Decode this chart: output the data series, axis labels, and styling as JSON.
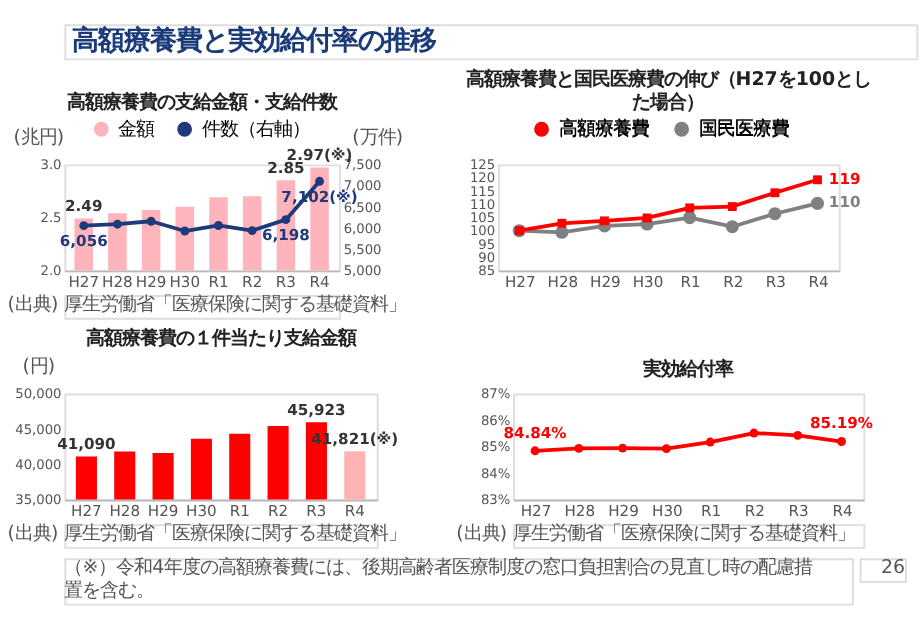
{
  "chart_data": [
    {
      "type": "other",
      "title": "高額療養費と実効給付率の推移",
      "annotations": [
        "（※）令和4年度の高額療養費には、後期高齢者医療制度の窓口負担割合の見直し時の配慮措置を含む。",
        "26"
      ]
    },
    {
      "type": "bar",
      "title": "高額療養費の支給金額・支給件数",
      "ylabel": "(兆円)",
      "y2label": "(万件)",
      "categories": [
        "H27",
        "H28",
        "H29",
        "H30",
        "R1",
        "R2",
        "R3",
        "R4"
      ],
      "ylim": [
        2.0,
        3.0
      ],
      "yticks": [
        {
          "value": 2.0,
          "label": "2.0"
        },
        {
          "value": 2.5,
          "label": "2.5"
        },
        {
          "value": 3.0,
          "label": "3.0"
        }
      ],
      "y2lim": [
        5000,
        7500
      ],
      "y2ticks": [
        {
          "value": 5000,
          "label": "5,000"
        },
        {
          "value": 5500,
          "label": "5,500"
        },
        {
          "value": 6000,
          "label": "6,000"
        },
        {
          "value": 6500,
          "label": "6,500"
        },
        {
          "value": 7000,
          "label": "7,000"
        },
        {
          "value": 7500,
          "label": "7,500"
        }
      ],
      "legend": "top",
      "grid": false,
      "series": [
        {
          "name": "金額",
          "type": "bar",
          "color": "#ffb3ba",
          "values": [
            2.49,
            2.54,
            2.57,
            2.6,
            2.69,
            2.7,
            2.85,
            2.97
          ],
          "value_labels": [
            "2.49",
            null,
            null,
            null,
            null,
            null,
            "2.85",
            "2.97(※)"
          ]
        },
        {
          "name": "件数（右軸）",
          "type": "line",
          "axis": "y2",
          "color": "#1f3a7a",
          "marker": "circle",
          "values": [
            6056,
            6090,
            6160,
            5930,
            6060,
            5940,
            6198,
            7102
          ],
          "value_labels": [
            "6,056",
            null,
            null,
            null,
            null,
            null,
            "6,198",
            "7,102(※)"
          ]
        }
      ],
      "annotations": [
        "(出典) 厚生労働省「医療保険に関する基礎資料」"
      ]
    },
    {
      "type": "line",
      "title": "高額療養費と国民医療費の伸び（H27を100とした場合）",
      "categories": [
        "H27",
        "H28",
        "H29",
        "H30",
        "R1",
        "R2",
        "R3",
        "R4"
      ],
      "ylim": [
        85,
        125
      ],
      "yticks": [
        85,
        90,
        95,
        100,
        105,
        110,
        115,
        120,
        125
      ],
      "legend": "top",
      "grid": false,
      "series": [
        {
          "name": "高額療養費",
          "color": "#ff0000",
          "marker": "square",
          "values": [
            100,
            102.8,
            103.7,
            104.8,
            108.6,
            109.1,
            114.3,
            119.2
          ],
          "value_labels": [
            null,
            null,
            null,
            null,
            null,
            null,
            null,
            "119"
          ]
        },
        {
          "name": "国民医療費",
          "color": "#808080",
          "marker": "circle",
          "values": [
            100,
            99.4,
            101.8,
            102.5,
            104.9,
            101.5,
            106.4,
            110.3
          ],
          "value_labels": [
            null,
            null,
            null,
            null,
            null,
            null,
            null,
            "110"
          ]
        }
      ]
    },
    {
      "type": "bar",
      "title": "高額療養費の１件当たり支給金額",
      "ylabel": "(円)",
      "categories": [
        "H27",
        "H28",
        "H29",
        "H30",
        "R1",
        "R2",
        "R3",
        "R4"
      ],
      "ylim": [
        35000,
        50000
      ],
      "yticks": [
        {
          "value": 35000,
          "label": "35,000"
        },
        {
          "value": 40000,
          "label": "40,000"
        },
        {
          "value": 45000,
          "label": "45,000"
        },
        {
          "value": 50000,
          "label": "50,000"
        }
      ],
      "grid": false,
      "values": [
        41090,
        41800,
        41600,
        43600,
        44300,
        45400,
        45923,
        41821
      ],
      "colors": [
        "#ff0000",
        "#ff0000",
        "#ff0000",
        "#ff0000",
        "#ff0000",
        "#ff0000",
        "#ff0000",
        "#ffb3b3"
      ],
      "value_labels": [
        "41,090",
        null,
        null,
        null,
        null,
        null,
        "45,923",
        "41,821(※)"
      ],
      "annotations": [
        "(出典) 厚生労働省「医療保険に関する基礎資料」"
      ]
    },
    {
      "type": "line",
      "title": "実効給付率",
      "categories": [
        "H27",
        "H28",
        "H29",
        "H30",
        "R1",
        "R2",
        "R3",
        "R4"
      ],
      "ylim": [
        83,
        87
      ],
      "yticks": [
        {
          "value": 83,
          "label": "83%"
        },
        {
          "value": 84,
          "label": "84%"
        },
        {
          "value": 85,
          "label": "85%"
        },
        {
          "value": 86,
          "label": "86%"
        },
        {
          "value": 87,
          "label": "87%"
        }
      ],
      "grid": false,
      "marker": "circle",
      "color": "#ff0000",
      "values": [
        84.84,
        84.93,
        84.94,
        84.92,
        85.17,
        85.51,
        85.42,
        85.19
      ],
      "value_labels": [
        "84.84%",
        null,
        null,
        null,
        null,
        null,
        null,
        "85.19%"
      ],
      "annotations": [
        "(出典) 厚生労働省「医療保険に関する基礎資料」"
      ]
    }
  ]
}
